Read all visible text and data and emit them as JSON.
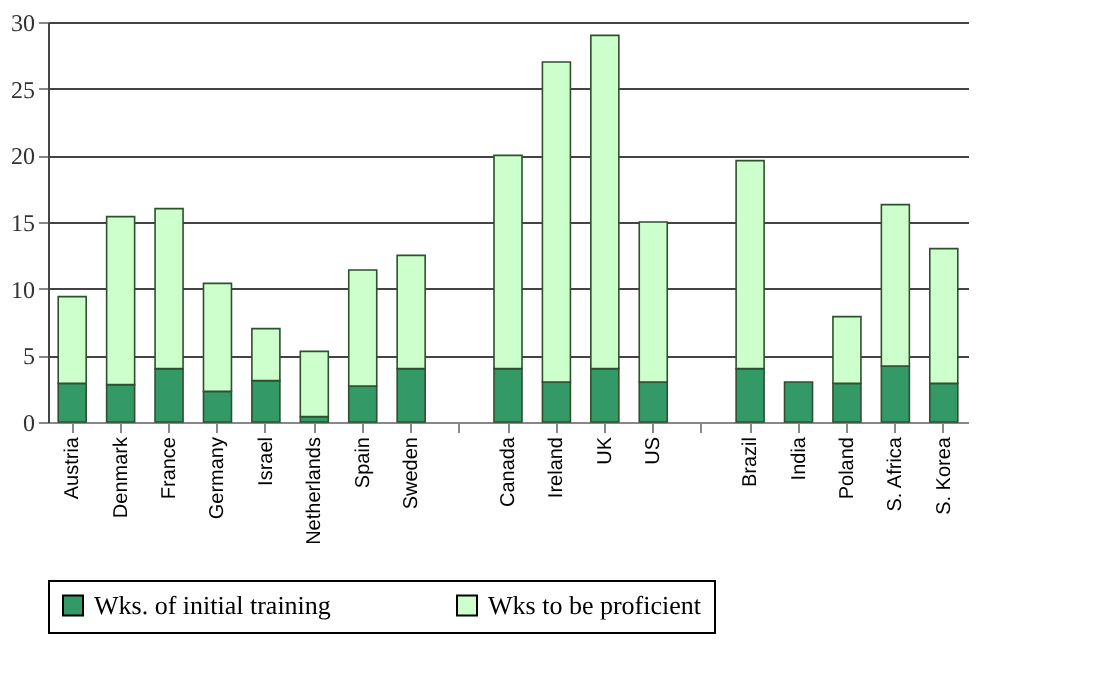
{
  "chart_data": {
    "type": "bar",
    "stacked": true,
    "categories": [
      "Austria",
      "Denmark",
      "France",
      "Germany",
      "Israel",
      "Netherlands",
      "Spain",
      "Sweden",
      null,
      "Canada",
      "Ireland",
      "UK",
      "US",
      null,
      "Brazil",
      "India",
      "Poland",
      "S. Africa",
      "S. Korea"
    ],
    "series": [
      {
        "name": "Wks. of initial training",
        "color": "#339966",
        "values": [
          2.9,
          2.8,
          4,
          2.3,
          3.1,
          0.4,
          2.7,
          4,
          null,
          4,
          3,
          4,
          3,
          null,
          4,
          3,
          2.9,
          4.2,
          2.9
        ]
      },
      {
        "name": "Wks to be proficient",
        "color": "#ccffcc",
        "values": [
          6.5,
          12.6,
          12,
          8.1,
          3.9,
          4.9,
          8.7,
          8.5,
          null,
          16,
          24,
          25,
          12,
          null,
          15.6,
          null,
          5,
          12.1,
          10.1
        ]
      }
    ],
    "ylim": [
      0,
      30
    ],
    "yticks": [
      0,
      5,
      10,
      15,
      20,
      25,
      30
    ],
    "grid": "y",
    "legend": "bottom"
  }
}
